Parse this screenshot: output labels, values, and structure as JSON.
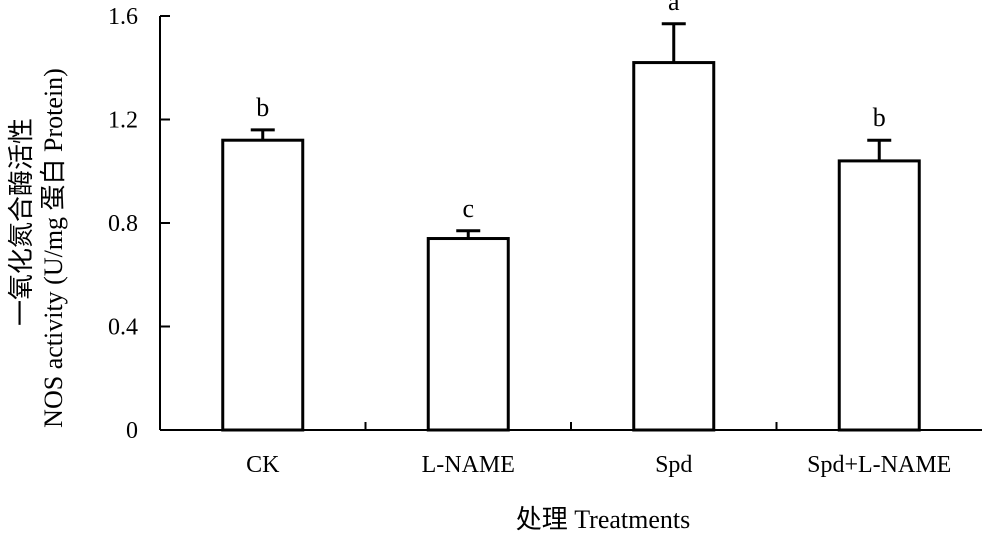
{
  "chart_data": {
    "type": "bar",
    "title": "",
    "categories": [
      "CK",
      "L-NAME",
      "Spd",
      "Spd+L-NAME"
    ],
    "values": [
      1.12,
      0.74,
      1.42,
      1.04
    ],
    "errors": [
      0.04,
      0.03,
      0.15,
      0.08
    ],
    "significance": [
      "b",
      "c",
      "a",
      "b"
    ],
    "xlabel": "处理 Treatments",
    "ylabel_line1": "一氧化氮合酶活性",
    "ylabel_line2": "NOS  activity (U/mg 蛋白 Protein)",
    "ylim": [
      0,
      1.6
    ],
    "yticks": [
      0,
      0.4,
      0.8,
      1.2,
      1.6
    ],
    "ytick_labels": [
      "0",
      "0.4",
      "0.8",
      "1.2",
      "1.6"
    ],
    "bar_fill": "#ffffff",
    "bar_stroke": "#000000",
    "grid": false,
    "legend": "none"
  }
}
